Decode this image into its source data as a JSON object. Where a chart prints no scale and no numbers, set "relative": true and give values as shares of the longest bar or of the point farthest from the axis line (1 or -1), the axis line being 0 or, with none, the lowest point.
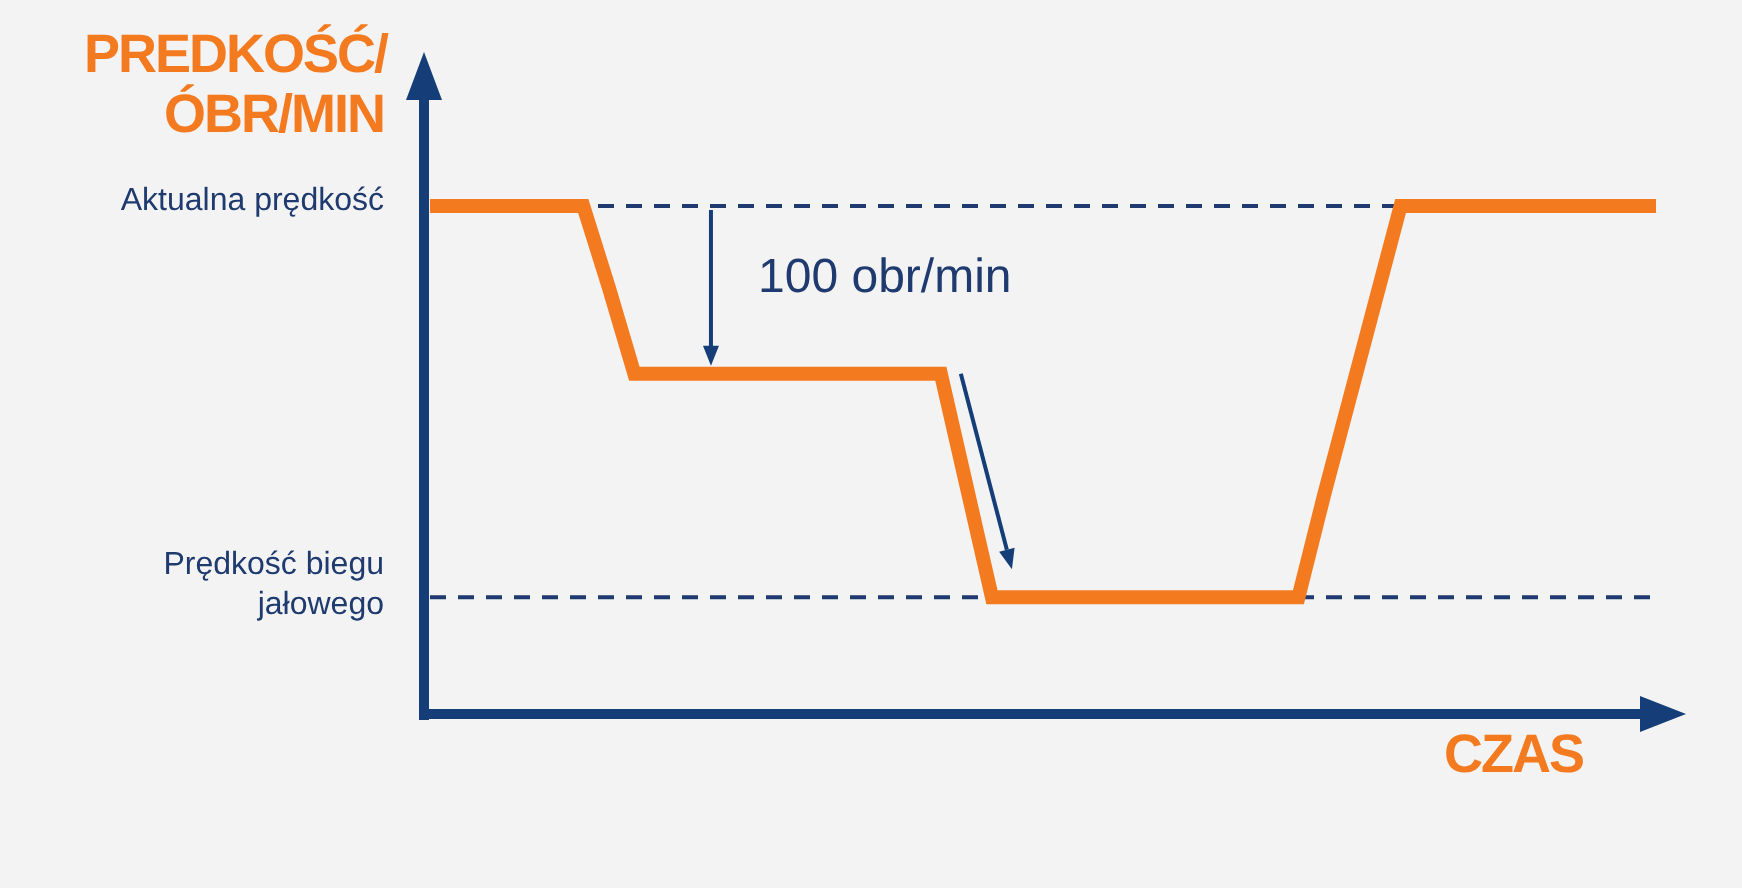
{
  "chart_data": {
    "type": "line",
    "relative": true,
    "ylabel": "PREDKOŚĆ/ ÓBR/MIN",
    "xlabel": "CZAS",
    "categories": [
      null,
      null,
      null,
      null,
      null,
      null,
      null,
      null,
      null,
      null,
      null,
      null,
      null,
      null,
      null,
      null,
      null,
      null,
      null,
      null,
      null,
      null,
      null,
      null,
      null,
      null,
      null,
      null,
      null,
      null,
      null,
      null,
      null,
      null,
      null,
      null,
      null,
      null,
      null,
      null,
      null,
      null,
      null,
      null,
      null,
      null,
      null,
      null,
      null
    ],
    "series": [
      {
        "color": "#f47a20",
        "values": [
          1,
          1,
          1,
          1,
          1,
          1,
          1,
          0.84,
          0.67,
          0.67,
          0.67,
          0.67,
          0.67,
          0.67,
          0.67,
          0.67,
          0.67,
          0.67,
          0.67,
          0.67,
          0.67,
          0.45,
          0.23,
          0.23,
          0.23,
          0.23,
          0.23,
          0.23,
          0.23,
          0.23,
          0.23,
          0.23,
          0.23,
          0.23,
          0.23,
          0.43,
          0.62,
          0.81,
          1,
          1,
          1,
          1,
          1,
          1,
          1,
          1,
          1,
          1,
          1
        ]
      }
    ],
    "ref_lines": [
      {
        "axis": "y",
        "value": 1,
        "label": "Aktualna prędkość",
        "color": "#1f3a6e",
        "line_style": "dashed"
      },
      {
        "axis": "y",
        "value": 0.23,
        "label": "Prędkość biegu jałowego",
        "color": "#1f3a6e",
        "line_style": "dashed"
      }
    ],
    "annotations": [
      "100 obr/min"
    ],
    "legend": false,
    "marker": "none",
    "line_style": "solid"
  }
}
